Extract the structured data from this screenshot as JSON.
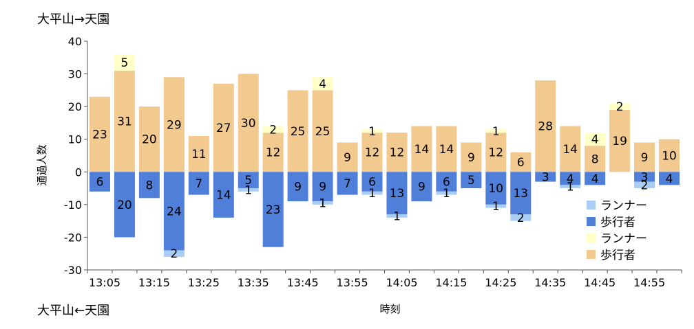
{
  "annotations": {
    "top_direction": "大平山→天園",
    "bottom_direction": "大平山←天園"
  },
  "chart_data": {
    "type": "bar",
    "stacked": true,
    "xlabel": "時刻",
    "ylabel": "通過人数",
    "ylim": [
      -30,
      40
    ],
    "yticks": [
      -30,
      -20,
      -10,
      0,
      10,
      20,
      30,
      40
    ],
    "x_tick_labels": [
      "13:05",
      "13:15",
      "13:25",
      "13:35",
      "13:45",
      "13:55",
      "14:05",
      "14:15",
      "14:25",
      "14:35",
      "14:45",
      "14:55"
    ],
    "categories": [
      "13:05",
      "13:10",
      "13:15",
      "13:20",
      "13:25",
      "13:30",
      "13:35",
      "13:40",
      "13:45",
      "13:50",
      "13:55",
      "14:00",
      "14:05",
      "14:10",
      "14:15",
      "14:20",
      "14:25",
      "14:30",
      "14:35",
      "14:40",
      "14:45",
      "14:50",
      "14:55",
      "15:00"
    ],
    "series": [
      {
        "name": "歩行者",
        "direction": "up",
        "color": "#F2C98F",
        "values": [
          23,
          31,
          20,
          29,
          11,
          27,
          30,
          12,
          25,
          25,
          9,
          12,
          12,
          14,
          14,
          9,
          12,
          6,
          28,
          14,
          8,
          19,
          9,
          10
        ]
      },
      {
        "name": "ランナー",
        "direction": "up",
        "color": "#FFFFC8",
        "values": [
          0,
          5,
          0,
          0,
          0,
          0,
          0,
          2,
          0,
          4,
          0,
          1,
          0,
          0,
          0,
          0,
          1,
          0,
          0,
          0,
          4,
          2,
          0,
          0
        ]
      },
      {
        "name": "歩行者",
        "direction": "down",
        "color": "#4F7FD9",
        "values": [
          -6,
          -20,
          -8,
          -24,
          -7,
          -14,
          -5,
          -23,
          -9,
          -9,
          -7,
          -6,
          -13,
          -9,
          -6,
          -5,
          -10,
          -13,
          -3,
          -4,
          -4,
          0,
          -3,
          -4
        ]
      },
      {
        "name": "ランナー",
        "direction": "down",
        "color": "#A9CDF5",
        "values": [
          0,
          0,
          0,
          -2,
          0,
          0,
          -1,
          0,
          0,
          -1,
          0,
          -1,
          -1,
          0,
          -1,
          0,
          -1,
          -2,
          0,
          -1,
          0,
          0,
          -2,
          0
        ]
      }
    ],
    "grid": false,
    "legend_position": "bottom-right",
    "legend": [
      "ランナー",
      "歩行者",
      "ランナー",
      "歩行者"
    ]
  }
}
